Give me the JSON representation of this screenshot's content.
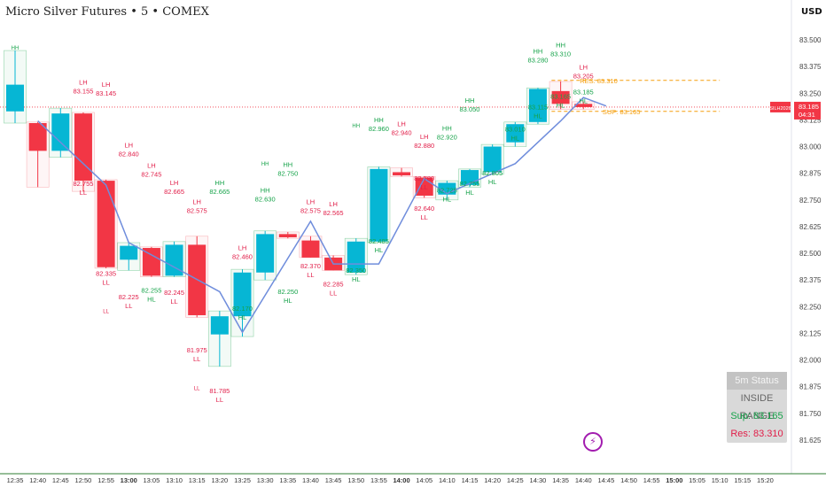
{
  "header": {
    "title": "Micro Silver Futures • 5 • COMEX",
    "currency": "USD"
  },
  "colors": {
    "up": "#06b6d4",
    "down": "#f23645",
    "pivot_high": "#e11d48",
    "pivot_low": "#16a34a",
    "line": "#6f8ddc",
    "res": "#f59e0b",
    "price": "#f23645"
  },
  "status": {
    "title": "5m Status",
    "state": "INSIDE RANGE",
    "sup": "Sup: 83.165",
    "res": "Res: 83.310"
  },
  "price_badge": {
    "name": "SILH2026",
    "price": "83.185",
    "countdown": "04:31"
  },
  "level_labels": {
    "res": "RES: 83.310",
    "sup": "SUP: 83.165"
  },
  "icons": {
    "status": "flash-icon"
  },
  "chart_data": {
    "type": "candlestick",
    "ylim": [
      81.56,
      83.56
    ],
    "y_ticks": [
      "83.500",
      "83.375",
      "83.250",
      "83.125",
      "83.000",
      "82.875",
      "82.750",
      "82.625",
      "82.500",
      "82.375",
      "82.250",
      "82.125",
      "82.000",
      "81.875",
      "81.750",
      "81.625"
    ],
    "x_ticks": [
      "12:35",
      "12:40",
      "12:45",
      "12:50",
      "12:55",
      "13:00",
      "13:05",
      "13:10",
      "13:15",
      "13:20",
      "13:25",
      "13:30",
      "13:35",
      "13:40",
      "13:45",
      "13:50",
      "13:55",
      "14:00",
      "14:05",
      "14:10",
      "14:15",
      "14:20",
      "14:25",
      "14:30",
      "14:35",
      "14:40",
      "14:45",
      "14:50",
      "14:55",
      "15:00",
      "15:05",
      "15:10",
      "15:15",
      "15:20"
    ],
    "bold_x_ticks": [
      "13:00",
      "14:00",
      "15:00"
    ],
    "candles": [
      {
        "t": "12:35",
        "o": 83.165,
        "h": 83.45,
        "l": 83.11,
        "c": 83.29
      },
      {
        "t": "12:40",
        "o": 83.11,
        "h": 83.115,
        "l": 82.81,
        "c": 82.98
      },
      {
        "t": "12:45",
        "o": 82.98,
        "h": 83.18,
        "l": 82.95,
        "c": 83.155
      },
      {
        "t": "12:50",
        "o": 83.155,
        "h": 83.16,
        "l": 82.79,
        "c": 82.84
      },
      {
        "t": "12:55",
        "o": 82.84,
        "h": 82.845,
        "l": 82.43,
        "c": 82.435
      },
      {
        "t": "13:00",
        "o": 82.47,
        "h": 82.55,
        "l": 82.42,
        "c": 82.535
      },
      {
        "t": "13:05",
        "o": 82.525,
        "h": 82.53,
        "l": 82.39,
        "c": 82.395
      },
      {
        "t": "13:10",
        "o": 82.395,
        "h": 82.555,
        "l": 82.39,
        "c": 82.54
      },
      {
        "t": "13:15",
        "o": 82.54,
        "h": 82.58,
        "l": 82.2,
        "c": 82.21
      },
      {
        "t": "13:20",
        "o": 82.12,
        "h": 82.23,
        "l": 81.97,
        "c": 82.205
      },
      {
        "t": "13:25",
        "o": 82.205,
        "h": 82.425,
        "l": 82.11,
        "c": 82.41
      },
      {
        "t": "13:30",
        "o": 82.41,
        "h": 82.605,
        "l": 82.375,
        "c": 82.59
      },
      {
        "t": "13:35",
        "o": 82.59,
        "h": 82.6,
        "l": 82.57,
        "c": 82.575
      },
      {
        "t": "13:40",
        "o": 82.56,
        "h": 82.58,
        "l": 82.48,
        "c": 82.48
      },
      {
        "t": "13:45",
        "o": 82.48,
        "h": 82.49,
        "l": 82.42,
        "c": 82.42
      },
      {
        "t": "13:50",
        "o": 82.41,
        "h": 82.57,
        "l": 82.4,
        "c": 82.555
      },
      {
        "t": "13:55",
        "o": 82.555,
        "h": 82.905,
        "l": 82.55,
        "c": 82.895
      },
      {
        "t": "14:00",
        "o": 82.88,
        "h": 82.9,
        "l": 82.86,
        "c": 82.865
      },
      {
        "t": "14:05",
        "o": 82.855,
        "h": 82.86,
        "l": 82.76,
        "c": 82.77
      },
      {
        "t": "14:10",
        "o": 82.775,
        "h": 82.84,
        "l": 82.75,
        "c": 82.83
      },
      {
        "t": "14:15",
        "o": 82.82,
        "h": 82.895,
        "l": 82.81,
        "c": 82.89
      },
      {
        "t": "14:20",
        "o": 82.88,
        "h": 83.01,
        "l": 82.87,
        "c": 83.0
      },
      {
        "t": "14:25",
        "o": 83.02,
        "h": 83.115,
        "l": 83.0,
        "c": 83.105
      },
      {
        "t": "14:30",
        "o": 83.115,
        "h": 83.275,
        "l": 83.105,
        "c": 83.27
      },
      {
        "t": "14:35",
        "o": 83.26,
        "h": 83.305,
        "l": 83.175,
        "c": 83.2
      },
      {
        "t": "14:40",
        "o": 83.2,
        "h": 83.21,
        "l": 83.175,
        "c": 83.185
      }
    ],
    "zigzag": [
      [
        1,
        83.12
      ],
      [
        4,
        82.82
      ],
      [
        5,
        82.55
      ],
      [
        9,
        82.32
      ],
      [
        10,
        82.13
      ],
      [
        13,
        82.65
      ],
      [
        14,
        82.45
      ],
      [
        16,
        82.45
      ],
      [
        18,
        82.85
      ],
      [
        19,
        82.78
      ],
      [
        22,
        82.92
      ],
      [
        24,
        83.12
      ],
      [
        25,
        83.23
      ],
      [
        26,
        83.19
      ]
    ],
    "res_level": 83.31,
    "sup_level": 83.165,
    "last_price": 83.185,
    "annotations": [
      {
        "i": 0,
        "p": 83.455,
        "c": "g",
        "s": 1,
        "lines": [
          "HH"
        ]
      },
      {
        "i": 3,
        "p": 83.29,
        "c": "r",
        "lines": [
          "LH",
          "83.155"
        ]
      },
      {
        "i": 4,
        "p": 83.28,
        "c": "r",
        "lines": [
          "LH",
          "83.145"
        ]
      },
      {
        "i": 5,
        "p": 82.995,
        "c": "r",
        "lines": [
          "LH",
          "82.840"
        ]
      },
      {
        "i": 3,
        "p": 82.815,
        "c": "r",
        "lines": [
          "82.755",
          "LL"
        ]
      },
      {
        "i": 6,
        "p": 82.9,
        "c": "r",
        "lines": [
          "LH",
          "82.745"
        ]
      },
      {
        "i": 7,
        "p": 82.82,
        "c": "r",
        "lines": [
          "LH",
          "82.665"
        ]
      },
      {
        "i": 9,
        "p": 82.82,
        "c": "g",
        "lines": [
          "HH",
          "82.665"
        ]
      },
      {
        "i": 8,
        "p": 82.73,
        "c": "r",
        "lines": [
          "LH",
          "82.575"
        ]
      },
      {
        "i": 4,
        "p": 82.395,
        "c": "r",
        "lines": [
          "82.335",
          "LL"
        ]
      },
      {
        "i": 4,
        "p": 82.22,
        "c": "r",
        "s": 1,
        "lines": [
          "LL"
        ]
      },
      {
        "i": 5,
        "p": 82.285,
        "c": "r",
        "lines": [
          "82.225",
          "LL"
        ]
      },
      {
        "i": 6,
        "p": 82.315,
        "c": "g",
        "lines": [
          "82.255",
          "HL"
        ]
      },
      {
        "i": 7,
        "p": 82.305,
        "c": "r",
        "lines": [
          "82.245",
          "LL"
        ]
      },
      {
        "i": 10,
        "p": 82.515,
        "c": "r",
        "lines": [
          "LH",
          "82.460"
        ]
      },
      {
        "i": 11,
        "p": 82.91,
        "c": "g",
        "s": 1,
        "lines": [
          "HH"
        ]
      },
      {
        "i": 12,
        "p": 82.905,
        "c": "g",
        "lines": [
          "HH",
          "82.750"
        ]
      },
      {
        "i": 11,
        "p": 82.785,
        "c": "g",
        "lines": [
          "HH",
          "82.630"
        ]
      },
      {
        "i": 13,
        "p": 82.73,
        "c": "r",
        "lines": [
          "LH",
          "82.575"
        ]
      },
      {
        "i": 14,
        "p": 82.72,
        "c": "r",
        "lines": [
          "LH",
          "82.565"
        ]
      },
      {
        "i": 8,
        "p": 82.035,
        "c": "r",
        "lines": [
          "81.975",
          "LL"
        ]
      },
      {
        "i": 8,
        "p": 81.86,
        "c": "r",
        "s": 1,
        "lines": [
          "LL"
        ]
      },
      {
        "i": 9,
        "p": 81.845,
        "c": "r",
        "lines": [
          "81.785",
          "LL"
        ]
      },
      {
        "i": 10,
        "p": 82.23,
        "c": "g",
        "lines": [
          "82.170",
          "HL"
        ]
      },
      {
        "i": 12,
        "p": 82.31,
        "c": "g",
        "lines": [
          "82.250",
          "HL"
        ]
      },
      {
        "i": 13,
        "p": 82.43,
        "c": "r",
        "lines": [
          "82.370",
          "LL"
        ]
      },
      {
        "i": 14,
        "p": 82.345,
        "c": "r",
        "lines": [
          "82.285",
          "LL"
        ]
      },
      {
        "i": 15,
        "p": 82.41,
        "c": "g",
        "lines": [
          "82.350",
          "HL"
        ]
      },
      {
        "i": 15,
        "p": 83.09,
        "c": "g",
        "s": 1,
        "lines": [
          "HH"
        ]
      },
      {
        "i": 16,
        "p": 83.115,
        "c": "g",
        "lines": [
          "HH",
          "82.960"
        ]
      },
      {
        "i": 17,
        "p": 83.095,
        "c": "r",
        "lines": [
          "LH",
          "82.940"
        ]
      },
      {
        "i": 16,
        "p": 82.545,
        "c": "g",
        "lines": [
          "82.485",
          "HL"
        ]
      },
      {
        "i": 18,
        "p": 82.84,
        "c": "r",
        "lines": [
          "82.780",
          "LL"
        ]
      },
      {
        "i": 18,
        "p": 82.7,
        "c": "r",
        "lines": [
          "82.640",
          "LL"
        ]
      },
      {
        "i": 18,
        "p": 83.035,
        "c": "r",
        "lines": [
          "LH",
          "82.880"
        ]
      },
      {
        "i": 19,
        "p": 83.075,
        "c": "g",
        "lines": [
          "HH",
          "82.920"
        ]
      },
      {
        "i": 20,
        "p": 83.205,
        "c": "g",
        "lines": [
          "HH",
          "83.050"
        ]
      },
      {
        "i": 19,
        "p": 82.785,
        "c": "g",
        "lines": [
          "82.725",
          "HL"
        ]
      },
      {
        "i": 20,
        "p": 82.815,
        "c": "g",
        "lines": [
          "82.755",
          "HL"
        ]
      },
      {
        "i": 21,
        "p": 82.865,
        "c": "g",
        "lines": [
          "82.805",
          "HL"
        ]
      },
      {
        "i": 22,
        "p": 83.07,
        "c": "g",
        "lines": [
          "83.010",
          "HL"
        ]
      },
      {
        "i": 23,
        "p": 83.435,
        "c": "g",
        "lines": [
          "HH",
          "83.280"
        ]
      },
      {
        "i": 24,
        "p": 83.465,
        "c": "g",
        "lines": [
          "HH",
          "83.310"
        ]
      },
      {
        "i": 25,
        "p": 83.36,
        "c": "r",
        "lines": [
          "LH",
          "83.205"
        ]
      },
      {
        "i": 23,
        "p": 83.175,
        "c": "g",
        "lines": [
          "83.115",
          "HL"
        ]
      },
      {
        "i": 24,
        "p": 83.225,
        "c": "g",
        "lines": [
          "83.165",
          "HL"
        ]
      },
      {
        "i": 25,
        "p": 83.245,
        "c": "g",
        "lines": [
          "83.185",
          "HL"
        ]
      }
    ]
  }
}
